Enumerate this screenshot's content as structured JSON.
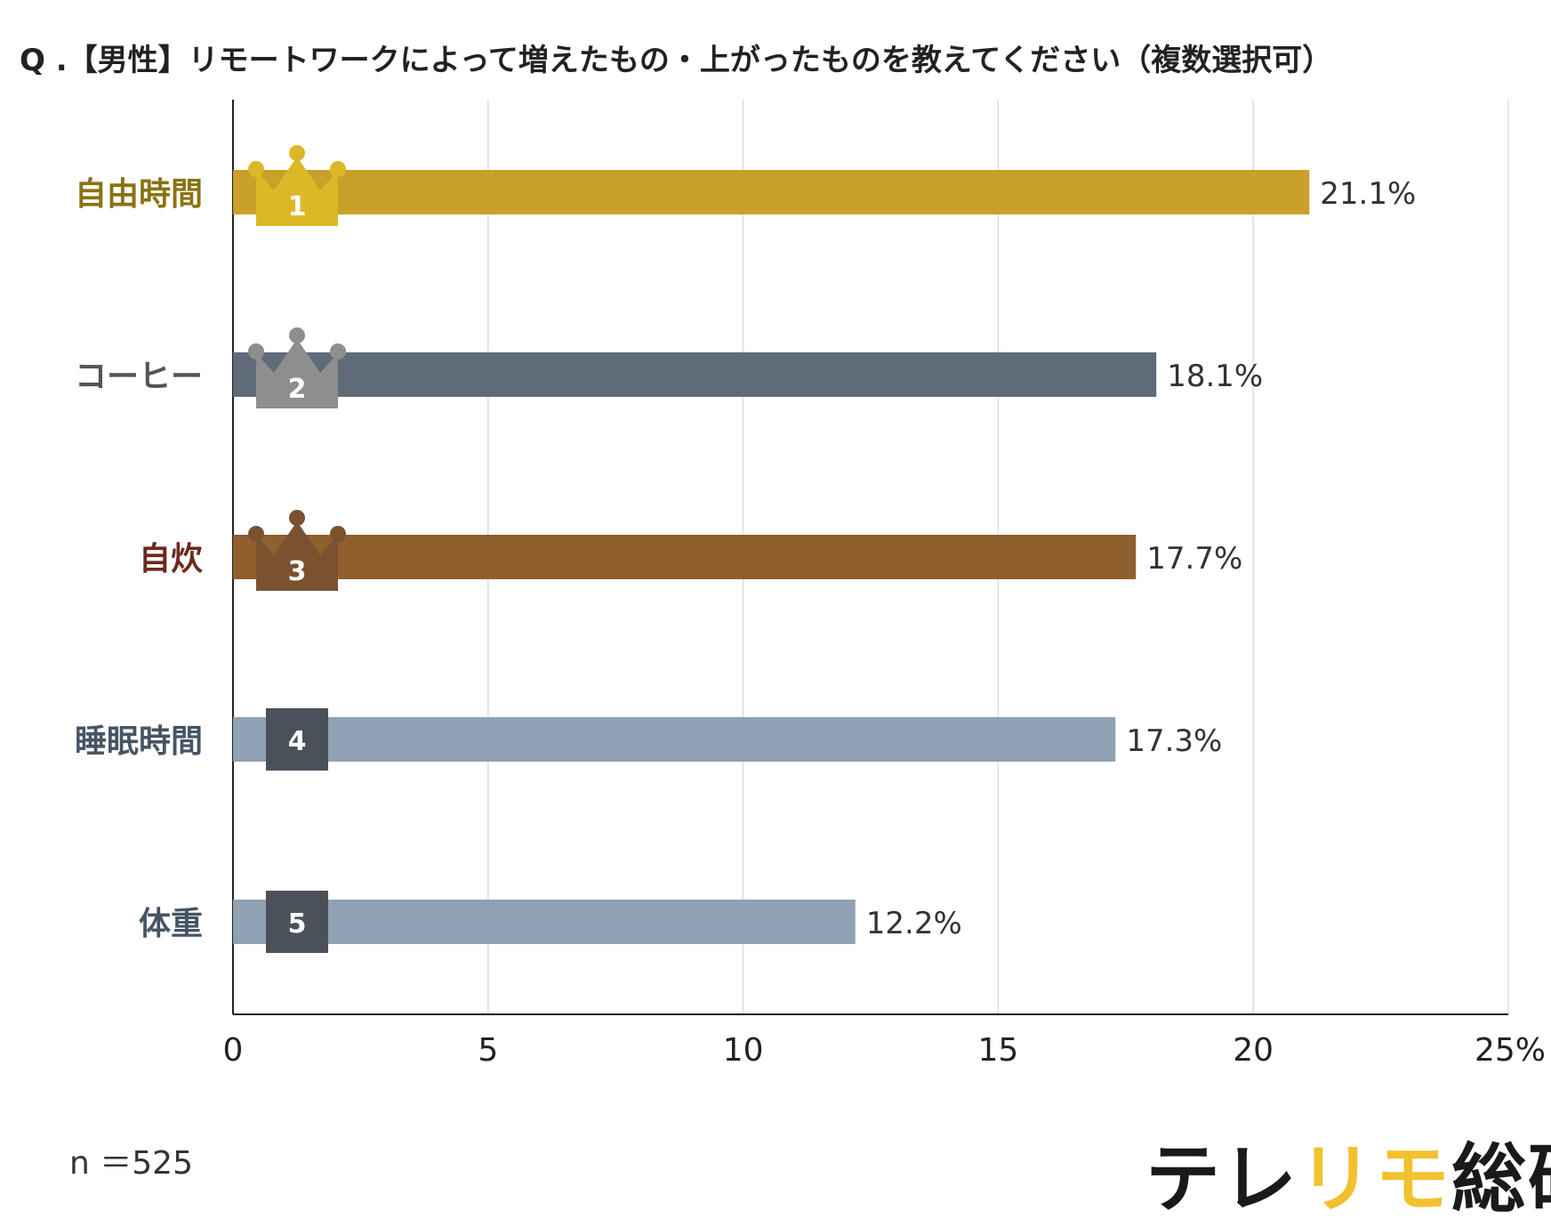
{
  "title": "Q .【男性】リモートワークによって増えたもの・上がったものを教えてください（複数選択可）",
  "sample_note": "n ＝525",
  "brand": {
    "part1": "テレ",
    "part2": "リモ",
    "part3": "総研",
    "color_dark": "#1a1a1a",
    "color_accent": "#f2c12e"
  },
  "chart_data": {
    "type": "bar",
    "orientation": "horizontal",
    "categories": [
      "自由時間",
      "コーヒー",
      "自炊",
      "睡眠時間",
      "体重"
    ],
    "values": [
      21.1,
      18.1,
      17.7,
      17.3,
      12.2
    ],
    "value_labels": [
      "21.1%",
      "18.1%",
      "17.7%",
      "17.3%",
      "12.2%"
    ],
    "ranks": [
      "1",
      "2",
      "3",
      "4",
      "5"
    ],
    "rank_badges": [
      "crown",
      "crown",
      "crown",
      "square",
      "square"
    ],
    "bar_colors": [
      "#c9a02a",
      "#5f6b79",
      "#8f5f2e",
      "#8fa1b2",
      "#8fa1b2"
    ],
    "badge_colors": [
      "#dcb827",
      "#8e8e8e",
      "#7a5230",
      "#4b515b",
      "#4b515b"
    ],
    "label_colors": [
      "#8a7312",
      "#555555",
      "#6b2a1c",
      "#455565",
      "#455565"
    ],
    "xlim": [
      0,
      25
    ],
    "xticks": [
      "0",
      "5",
      "10",
      "15",
      "20",
      "25%"
    ],
    "xtick_values": [
      0,
      5,
      10,
      15,
      20,
      25
    ],
    "grid": true
  }
}
